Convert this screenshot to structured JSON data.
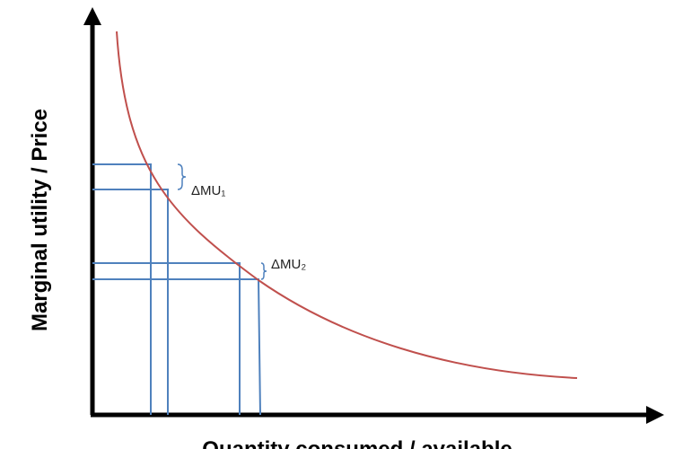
{
  "axes": {
    "y_label": "Marginal utility / Price",
    "x_label": "Quantity consumed / available"
  },
  "annotations": [
    {
      "label": "ΔMU₁"
    },
    {
      "label": "ΔMU₂"
    }
  ]
}
